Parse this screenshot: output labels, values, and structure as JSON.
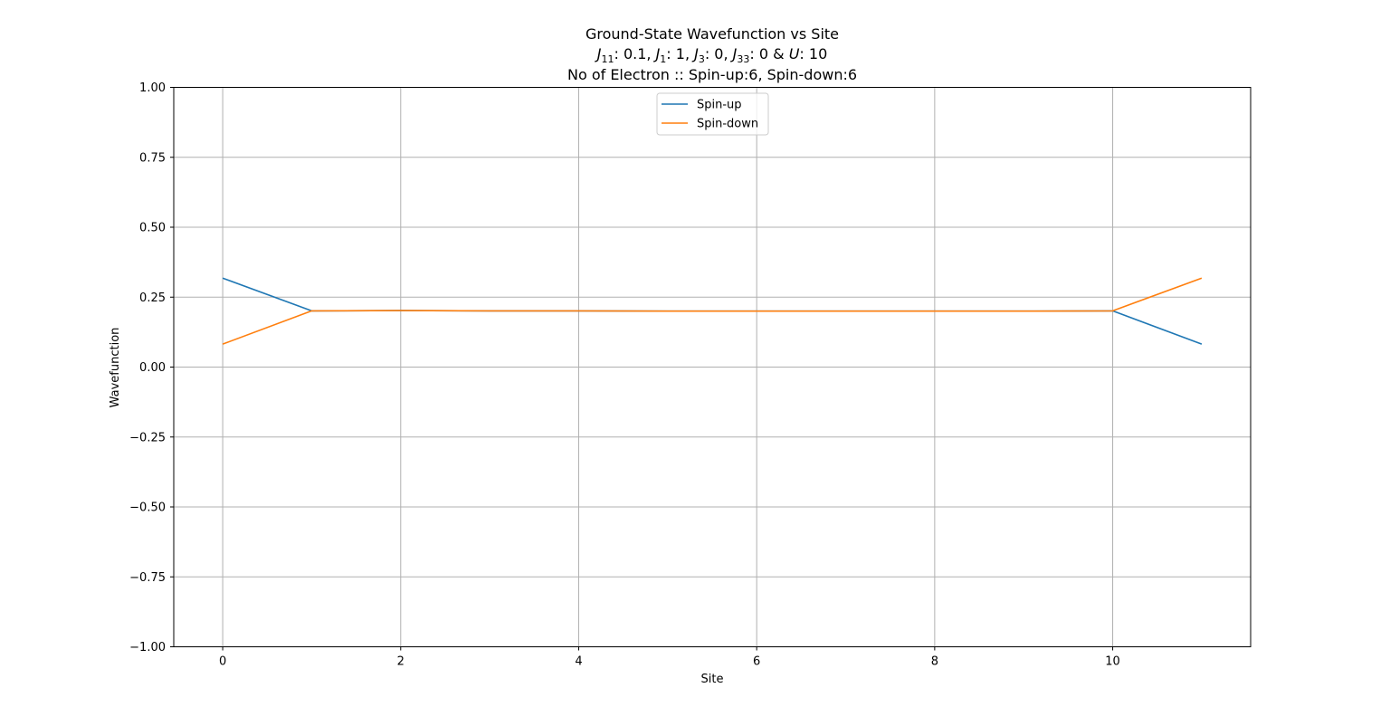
{
  "chart_data": {
    "type": "line",
    "title_line1": "Ground-State Wavefunction vs Site",
    "title_line3": "No of Electron :: Spin-up:6, Spin-down:6",
    "params": [
      {
        "sym": "J",
        "sub": "11",
        "value": ": 0.1, "
      },
      {
        "sym": "J",
        "sub": "1",
        "value": ": 1, "
      },
      {
        "sym": "J",
        "sub": "3",
        "value": ": 0, "
      },
      {
        "sym": "J",
        "sub": "33",
        "value": ": 0 & "
      },
      {
        "sym": "U",
        "sub": "",
        "value": ": 10"
      }
    ],
    "xlabel": "Site",
    "ylabel": "Wavefunction",
    "xlim": [
      -0.55,
      11.55
    ],
    "ylim": [
      -1.0,
      1.0
    ],
    "xticks": [
      0,
      2,
      4,
      6,
      8,
      10
    ],
    "yticks": [
      -1.0,
      -0.75,
      -0.5,
      -0.25,
      0.0,
      0.25,
      0.5,
      0.75,
      1.0
    ],
    "ytick_labels": [
      "−1.00",
      "−0.75",
      "−0.50",
      "−0.25",
      "0.00",
      "0.25",
      "0.50",
      "0.75",
      "1.00"
    ],
    "grid": true,
    "legend_position": "upper-center",
    "x": [
      0,
      1,
      2,
      3,
      4,
      5,
      6,
      7,
      8,
      9,
      10,
      11
    ],
    "series": [
      {
        "name": "Spin-up",
        "color": "#1f77b4",
        "values": [
          0.318,
          0.201,
          0.202,
          0.201,
          0.201,
          0.2,
          0.2,
          0.2,
          0.2,
          0.2,
          0.201,
          0.082
        ]
      },
      {
        "name": "Spin-down",
        "color": "#ff7f0e",
        "values": [
          0.082,
          0.201,
          0.202,
          0.201,
          0.201,
          0.2,
          0.2,
          0.2,
          0.2,
          0.2,
          0.201,
          0.318
        ]
      }
    ]
  }
}
